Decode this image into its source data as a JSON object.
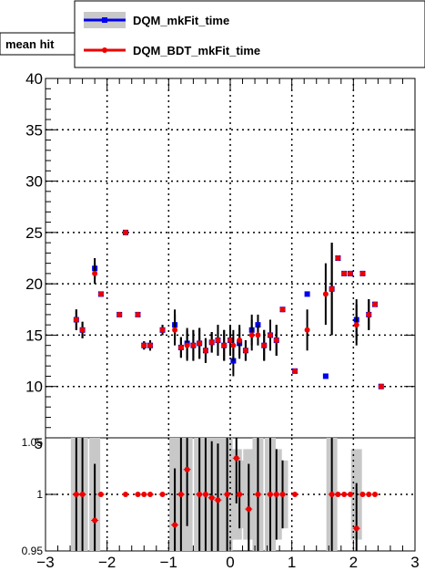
{
  "chart_data": [
    {
      "type": "scatter",
      "title": "mean hit",
      "xlim": [
        -3,
        3
      ],
      "ylim": [
        5,
        40
      ],
      "yticks": [
        "5",
        "10",
        "15",
        "20",
        "25",
        "30",
        "35",
        "40"
      ],
      "grid": true,
      "legend_position": "top-right",
      "series": [
        {
          "name": "DQM_mkFit_time",
          "color": "#0000ee",
          "marker": "square",
          "points": [
            {
              "x": -2.5,
              "y": 16.5,
              "err": 1.0
            },
            {
              "x": -2.4,
              "y": 15.5,
              "err": 0.8
            },
            {
              "x": -2.2,
              "y": 21.5,
              "err": 1.0
            },
            {
              "x": -2.1,
              "y": 19.0,
              "err": 0.0
            },
            {
              "x": -1.8,
              "y": 17.0,
              "err": 0.0
            },
            {
              "x": -1.7,
              "y": 25.0,
              "err": 0.0
            },
            {
              "x": -1.5,
              "y": 17.0,
              "err": 0.0
            },
            {
              "x": -1.4,
              "y": 14.0,
              "err": 0.4
            },
            {
              "x": -1.3,
              "y": 14.0,
              "err": 0.5
            },
            {
              "x": -1.1,
              "y": 15.5,
              "err": 0.5
            },
            {
              "x": -0.9,
              "y": 16.0,
              "err": 1.5
            },
            {
              "x": -0.8,
              "y": 13.8,
              "err": 1.0
            },
            {
              "x": -0.7,
              "y": 14.2,
              "err": 1.5
            },
            {
              "x": -0.6,
              "y": 14.0,
              "err": 1.5
            },
            {
              "x": -0.5,
              "y": 14.2,
              "err": 1.5
            },
            {
              "x": -0.4,
              "y": 13.5,
              "err": 1.2
            },
            {
              "x": -0.3,
              "y": 14.3,
              "err": 1.0
            },
            {
              "x": -0.2,
              "y": 14.5,
              "err": 1.5
            },
            {
              "x": -0.1,
              "y": 14.0,
              "err": 1.5
            },
            {
              "x": 0.0,
              "y": 14.5,
              "err": 1.5
            },
            {
              "x": 0.05,
              "y": 12.5,
              "err": 1.5
            },
            {
              "x": 0.15,
              "y": 14.2,
              "err": 1.5
            },
            {
              "x": 0.25,
              "y": 13.5,
              "err": 1.0
            },
            {
              "x": 0.35,
              "y": 15.5,
              "err": 1.5
            },
            {
              "x": 0.45,
              "y": 16.0,
              "err": 1.0
            },
            {
              "x": 0.55,
              "y": 14.0,
              "err": 1.5
            },
            {
              "x": 0.65,
              "y": 15.0,
              "err": 1.5
            },
            {
              "x": 0.75,
              "y": 14.5,
              "err": 1.5
            },
            {
              "x": 0.85,
              "y": 17.5,
              "err": 0.0
            },
            {
              "x": 1.05,
              "y": 11.5,
              "err": 0.0
            },
            {
              "x": 1.25,
              "y": 19.0,
              "err": 0.0
            },
            {
              "x": 1.55,
              "y": 11.0,
              "err": 0.0
            },
            {
              "x": 1.65,
              "y": 19.5,
              "err": 4.5
            },
            {
              "x": 1.75,
              "y": 22.5,
              "err": 0.0
            },
            {
              "x": 1.85,
              "y": 21.0,
              "err": 0.0
            },
            {
              "x": 1.95,
              "y": 21.0,
              "err": 0.0
            },
            {
              "x": 2.05,
              "y": 16.5,
              "err": 2.0
            },
            {
              "x": 2.15,
              "y": 21.0,
              "err": 0.0
            },
            {
              "x": 2.25,
              "y": 17.0,
              "err": 1.5
            },
            {
              "x": 2.35,
              "y": 18.0,
              "err": 0.0
            },
            {
              "x": 2.45,
              "y": 10.0,
              "err": 0.0
            }
          ]
        },
        {
          "name": "DQM_BDT_mkFit_time",
          "color": "#ee0000",
          "marker": "circle",
          "points": [
            {
              "x": -2.5,
              "y": 16.5,
              "err": 1.0
            },
            {
              "x": -2.4,
              "y": 15.5,
              "err": 0.8
            },
            {
              "x": -2.2,
              "y": 21.0,
              "err": 1.0
            },
            {
              "x": -2.1,
              "y": 19.0,
              "err": 0.0
            },
            {
              "x": -1.8,
              "y": 17.0,
              "err": 0.0
            },
            {
              "x": -1.7,
              "y": 25.0,
              "err": 0.0
            },
            {
              "x": -1.5,
              "y": 17.0,
              "err": 0.0
            },
            {
              "x": -1.4,
              "y": 14.0,
              "err": 0.4
            },
            {
              "x": -1.3,
              "y": 14.0,
              "err": 0.5
            },
            {
              "x": -1.1,
              "y": 15.5,
              "err": 0.5
            },
            {
              "x": -0.9,
              "y": 15.5,
              "err": 1.5
            },
            {
              "x": -0.8,
              "y": 13.8,
              "err": 1.0
            },
            {
              "x": -0.7,
              "y": 14.0,
              "err": 1.5
            },
            {
              "x": -0.6,
              "y": 14.0,
              "err": 1.5
            },
            {
              "x": -0.5,
              "y": 14.2,
              "err": 1.5
            },
            {
              "x": -0.4,
              "y": 13.5,
              "err": 1.2
            },
            {
              "x": -0.3,
              "y": 14.3,
              "err": 1.0
            },
            {
              "x": -0.2,
              "y": 14.5,
              "err": 1.5
            },
            {
              "x": -0.1,
              "y": 14.0,
              "err": 1.5
            },
            {
              "x": 0.0,
              "y": 14.5,
              "err": 1.5
            },
            {
              "x": 0.05,
              "y": 14.0,
              "err": 1.5
            },
            {
              "x": 0.15,
              "y": 14.5,
              "err": 1.5
            },
            {
              "x": 0.25,
              "y": 13.5,
              "err": 1.0
            },
            {
              "x": 0.35,
              "y": 15.0,
              "err": 1.5
            },
            {
              "x": 0.45,
              "y": 15.0,
              "err": 1.0
            },
            {
              "x": 0.55,
              "y": 14.0,
              "err": 1.5
            },
            {
              "x": 0.65,
              "y": 15.0,
              "err": 1.5
            },
            {
              "x": 0.75,
              "y": 14.5,
              "err": 1.5
            },
            {
              "x": 0.85,
              "y": 17.5,
              "err": 0.0
            },
            {
              "x": 1.05,
              "y": 11.5,
              "err": 0.0
            },
            {
              "x": 1.25,
              "y": 15.5,
              "err": 2.0
            },
            {
              "x": 1.55,
              "y": 19.0,
              "err": 3.0
            },
            {
              "x": 1.65,
              "y": 19.5,
              "err": 4.5
            },
            {
              "x": 1.75,
              "y": 22.5,
              "err": 0.0
            },
            {
              "x": 1.85,
              "y": 21.0,
              "err": 0.0
            },
            {
              "x": 1.95,
              "y": 21.0,
              "err": 0.0
            },
            {
              "x": 2.05,
              "y": 16.0,
              "err": 2.0
            },
            {
              "x": 2.15,
              "y": 21.0,
              "err": 0.0
            },
            {
              "x": 2.25,
              "y": 17.0,
              "err": 1.5
            },
            {
              "x": 2.35,
              "y": 18.0,
              "err": 0.0
            },
            {
              "x": 2.45,
              "y": 10.0,
              "err": 0.0
            }
          ]
        }
      ]
    },
    {
      "type": "scatter",
      "xlim": [
        -3,
        3
      ],
      "ylim": [
        0.95,
        1.05
      ],
      "xticks": [
        "-3",
        "-2",
        "-1",
        "0",
        "1",
        "2",
        "3"
      ],
      "yticks": [
        "0.95",
        "1",
        "1.05"
      ],
      "grid": true,
      "band_color": "#c8c8c8",
      "points": [
        {
          "x": -2.5,
          "y": 1.0,
          "err": 0.05
        },
        {
          "x": -2.4,
          "y": 1.0,
          "err": 0.05
        },
        {
          "x": -2.2,
          "y": 0.977,
          "err": 0.05
        },
        {
          "x": -2.1,
          "y": 1.0,
          "err": 0.0
        },
        {
          "x": -1.7,
          "y": 1.0,
          "err": 0.0
        },
        {
          "x": -1.5,
          "y": 1.0,
          "err": 0.0
        },
        {
          "x": -1.4,
          "y": 1.0,
          "err": 0.0
        },
        {
          "x": -1.3,
          "y": 1.0,
          "err": 0.0
        },
        {
          "x": -1.1,
          "y": 1.0,
          "err": 0.0
        },
        {
          "x": -0.9,
          "y": 0.973,
          "err": 0.05
        },
        {
          "x": -0.8,
          "y": 1.0,
          "err": 0.05
        },
        {
          "x": -0.7,
          "y": 1.022,
          "err": 0.05
        },
        {
          "x": -0.5,
          "y": 1.0,
          "err": 0.05
        },
        {
          "x": -0.4,
          "y": 1.0,
          "err": 0.05
        },
        {
          "x": -0.3,
          "y": 0.997,
          "err": 0.05
        },
        {
          "x": -0.2,
          "y": 0.995,
          "err": 0.05
        },
        {
          "x": -0.05,
          "y": 1.0,
          "err": 0.05
        },
        {
          "x": 0.1,
          "y": 1.032,
          "err": 0.04
        },
        {
          "x": 0.15,
          "y": 1.0,
          "err": 0.03
        },
        {
          "x": 0.3,
          "y": 0.987,
          "err": 0.04
        },
        {
          "x": 0.45,
          "y": 1.0,
          "err": 0.05
        },
        {
          "x": 0.65,
          "y": 1.0,
          "err": 0.05
        },
        {
          "x": 0.75,
          "y": 1.0,
          "err": 0.04
        },
        {
          "x": 0.85,
          "y": 1.0,
          "err": 0.03
        },
        {
          "x": 1.05,
          "y": 1.0,
          "err": 0.0
        },
        {
          "x": 1.65,
          "y": 1.0,
          "err": 0.05
        },
        {
          "x": 1.75,
          "y": 1.0,
          "err": 0.0
        },
        {
          "x": 1.85,
          "y": 1.0,
          "err": 0.0
        },
        {
          "x": 1.95,
          "y": 1.0,
          "err": 0.0
        },
        {
          "x": 2.05,
          "y": 0.97,
          "err": 0.04
        },
        {
          "x": 2.15,
          "y": 1.0,
          "err": 0.0
        },
        {
          "x": 2.25,
          "y": 1.0,
          "err": 0.0
        },
        {
          "x": 2.35,
          "y": 1.0,
          "err": 0.0
        }
      ]
    }
  ]
}
